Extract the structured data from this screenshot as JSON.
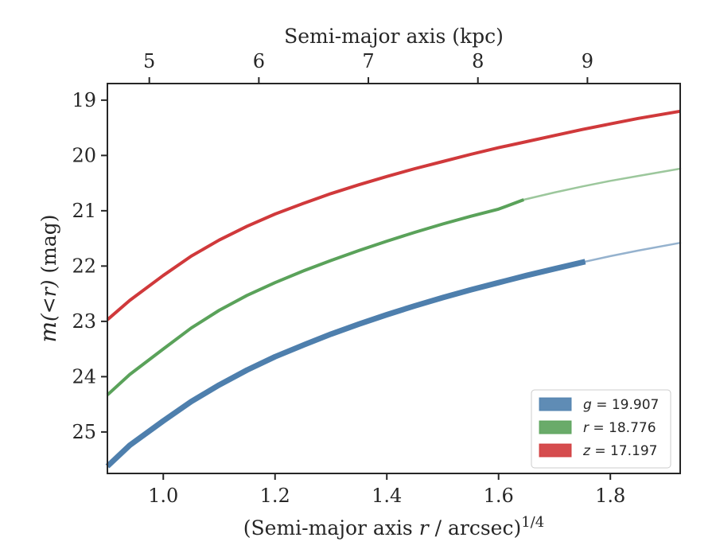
{
  "chart_data": {
    "type": "line",
    "title": "",
    "xlabel": "(Semi-major axis r / arcsec)^1/4",
    "xlabel_parts": {
      "pre": "(Semi-major axis ",
      "var": "r",
      "post": " / arcsec)",
      "sup": "1/4"
    },
    "ylabel": "m(<r) (mag)",
    "ylabel_parts": {
      "var": "m",
      "paren": "(<r)",
      "unit": " (mag)"
    },
    "x2label": "Semi-major axis (kpc)",
    "xlim": [
      0.9,
      1.925
    ],
    "ylim": [
      25.75,
      18.7
    ],
    "y_inverted": true,
    "x_ticks": [
      1.0,
      1.2,
      1.4,
      1.6,
      1.8
    ],
    "x_tick_labels": [
      "1.0",
      "1.2",
      "1.4",
      "1.6",
      "1.8"
    ],
    "y_ticks": [
      19,
      20,
      21,
      22,
      23,
      24,
      25
    ],
    "y_tick_labels": [
      "19",
      "20",
      "21",
      "22",
      "23",
      "24",
      "25"
    ],
    "x2_ticks": [
      5,
      6,
      7,
      8,
      9
    ],
    "x2_tick_labels": [
      "5",
      "6",
      "7",
      "8",
      "9"
    ],
    "x2_tick_positions_x": [
      0.975,
      1.171,
      1.367,
      1.563,
      1.759
    ],
    "grid": false,
    "legend_position": "bottom-right",
    "series": [
      {
        "name": "g = 19.907",
        "legend_var": "g",
        "legend_value": "= 19.907",
        "color": "#4e7fad",
        "x": [
          0.9,
          0.94,
          1.0,
          1.05,
          1.1,
          1.15,
          1.2,
          1.25,
          1.3,
          1.35,
          1.4,
          1.45,
          1.5,
          1.55,
          1.6,
          1.65,
          1.7,
          1.755
        ],
        "y": [
          25.62,
          25.24,
          24.8,
          24.45,
          24.15,
          23.88,
          23.64,
          23.43,
          23.23,
          23.05,
          22.88,
          22.72,
          22.57,
          22.43,
          22.3,
          22.17,
          22.05,
          21.92
        ],
        "extension_x": [
          1.755,
          1.8,
          1.85,
          1.925
        ],
        "extension_y": [
          21.92,
          21.82,
          21.72,
          21.58
        ]
      },
      {
        "name": "r = 18.776",
        "legend_var": "r",
        "legend_value": "= 18.776",
        "color": "#5aa25a",
        "x": [
          0.9,
          0.94,
          1.0,
          1.05,
          1.1,
          1.15,
          1.2,
          1.25,
          1.3,
          1.35,
          1.4,
          1.45,
          1.5,
          1.55,
          1.6,
          1.645
        ],
        "y": [
          24.33,
          23.96,
          23.5,
          23.12,
          22.8,
          22.53,
          22.3,
          22.09,
          21.9,
          21.72,
          21.55,
          21.39,
          21.24,
          21.1,
          20.97,
          20.8
        ],
        "extension_x": [
          1.645,
          1.7,
          1.75,
          1.8,
          1.85,
          1.925
        ],
        "extension_y": [
          20.8,
          20.67,
          20.56,
          20.46,
          20.37,
          20.24
        ]
      },
      {
        "name": "z = 17.197",
        "legend_var": "z",
        "legend_value": "= 17.197",
        "color": "#d0393b",
        "x": [
          0.9,
          0.94,
          1.0,
          1.05,
          1.1,
          1.15,
          1.2,
          1.25,
          1.3,
          1.35,
          1.4,
          1.45,
          1.5,
          1.55,
          1.6,
          1.65,
          1.7,
          1.75,
          1.8,
          1.85,
          1.925
        ],
        "y": [
          22.97,
          22.62,
          22.17,
          21.82,
          21.53,
          21.28,
          21.06,
          20.87,
          20.69,
          20.53,
          20.38,
          20.24,
          20.11,
          19.98,
          19.86,
          19.75,
          19.64,
          19.53,
          19.43,
          19.33,
          19.2
        ],
        "extension_x": [],
        "extension_y": []
      }
    ]
  }
}
